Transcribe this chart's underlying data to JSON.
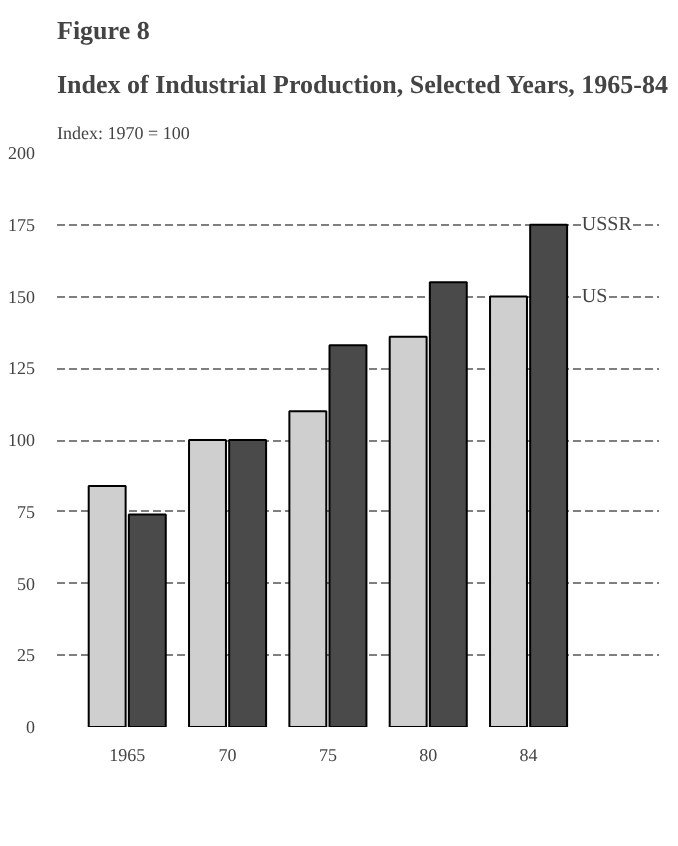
{
  "chart_data": {
    "type": "bar",
    "title": "Figure 8",
    "subtitle": "Index of Industrial Production, Selected Years, 1965-84",
    "categories": [
      "1965",
      "70",
      "75",
      "80",
      "84"
    ],
    "series": [
      {
        "name": "US",
        "color": "#cfcfcf",
        "values": [
          84,
          100,
          110,
          136,
          150
        ]
      },
      {
        "name": "USSR",
        "color": "#4a4a4a",
        "values": [
          74,
          100,
          133,
          155,
          175
        ]
      }
    ],
    "ylim": [
      0,
      200
    ],
    "yticks": [
      0,
      25,
      50,
      75,
      100,
      125,
      150,
      175,
      200
    ],
    "grid": "y",
    "legend": false,
    "annotations": [
      "Index: 1970 = 100"
    ]
  }
}
